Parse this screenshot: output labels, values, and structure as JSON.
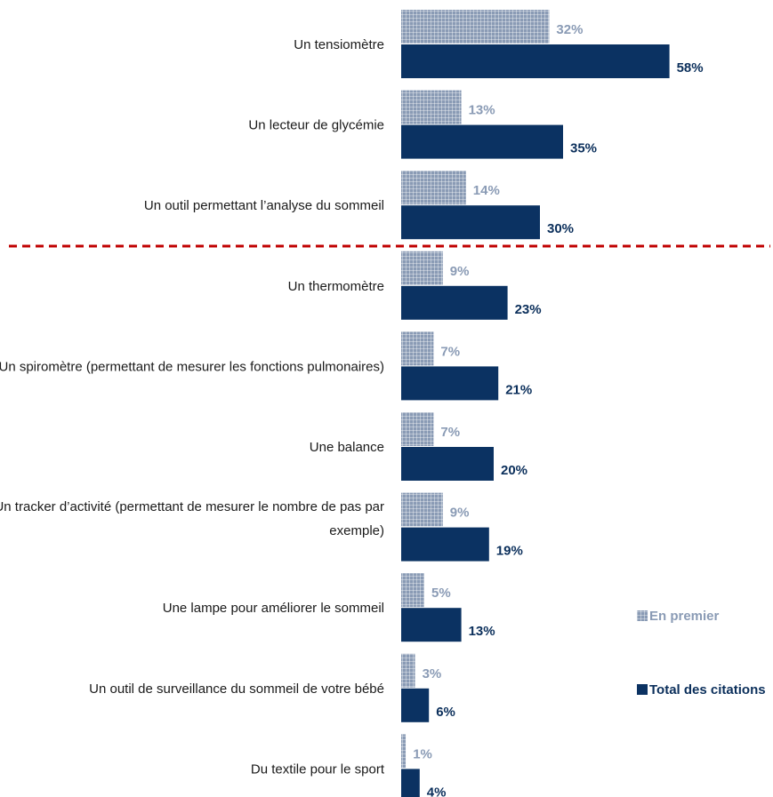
{
  "chart_data": {
    "type": "bar",
    "orientation": "horizontal",
    "categories": [
      [
        "Un tensiomètre"
      ],
      [
        "Un lecteur de glycémie"
      ],
      [
        "Un outil permettant l’analyse du sommeil"
      ],
      [
        "Un thermomètre"
      ],
      [
        "Un spiromètre (permettant de mesurer les fonctions pulmonaires)"
      ],
      [
        "Une balance"
      ],
      [
        "Un tracker d’activité (permettant de mesurer le nombre de pas par",
        "exemple)"
      ],
      [
        "Une lampe pour améliorer le sommeil"
      ],
      [
        "Un outil de surveillance du sommeil de votre bébé"
      ],
      [
        "Du textile pour le sport"
      ]
    ],
    "series": [
      {
        "name": "En premier",
        "color": "#8a9bb5",
        "pattern": "grid",
        "values": [
          32,
          13,
          14,
          9,
          7,
          7,
          9,
          5,
          3,
          1
        ],
        "labels": [
          "32%",
          "13%",
          "14%",
          "9%",
          "7%",
          "7%",
          "9%",
          "5%",
          "3%",
          "1%"
        ]
      },
      {
        "name": "Total des citations",
        "color": "#0b3262",
        "pattern": "solid",
        "values": [
          58,
          35,
          30,
          23,
          21,
          20,
          19,
          13,
          6,
          4
        ],
        "labels": [
          "58%",
          "35%",
          "30%",
          "23%",
          "21%",
          "20%",
          "19%",
          "13%",
          "6%",
          "4%"
        ]
      }
    ],
    "separator_after_index": 2,
    "separator_color": "#c00000",
    "legend_position": "right",
    "grid": false
  }
}
